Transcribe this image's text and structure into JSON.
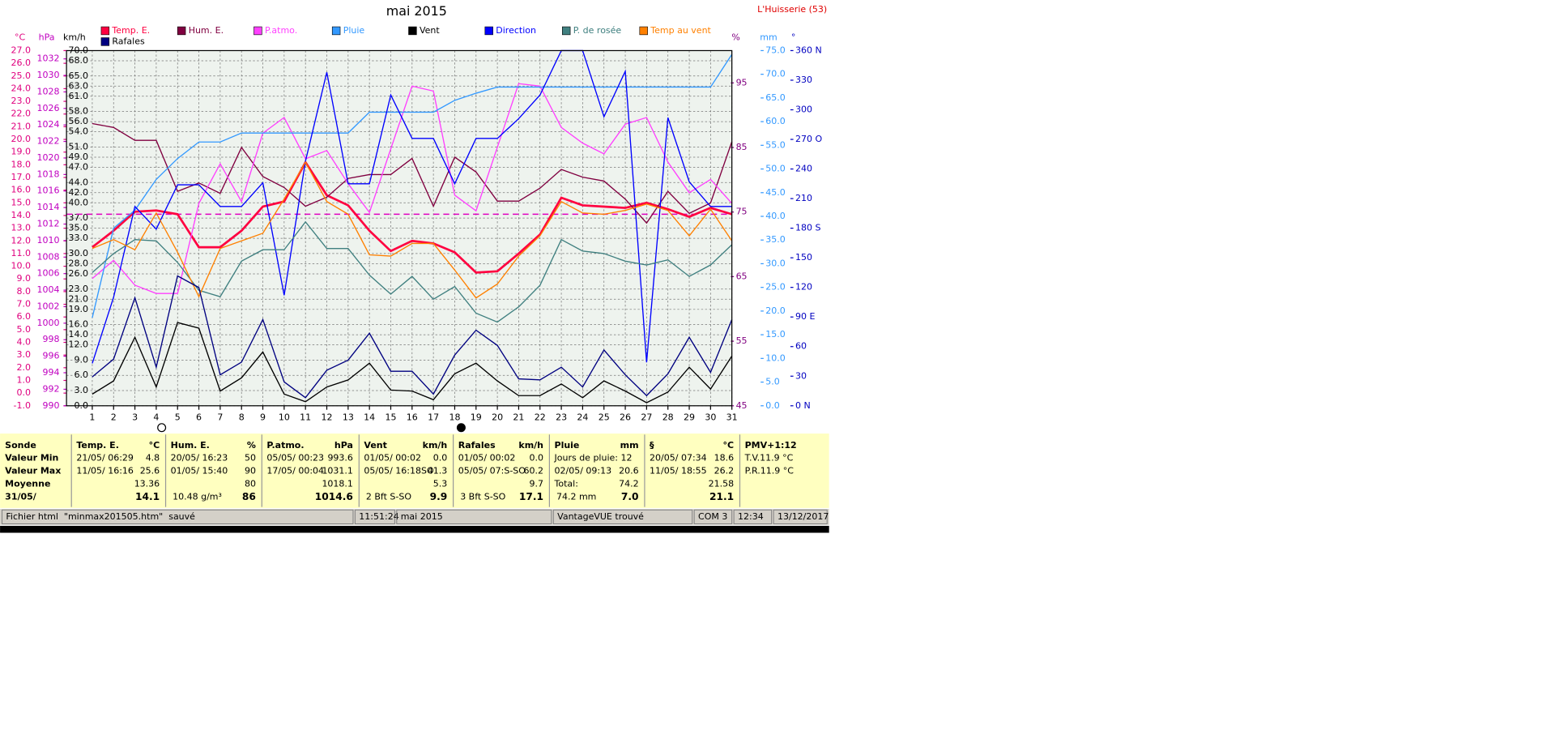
{
  "chart_data": {
    "type": "line",
    "title": "mai 2015",
    "station": "L'Huisserie (53)",
    "categories": [
      "1",
      "2",
      "3",
      "4",
      "5",
      "6",
      "7",
      "8",
      "9",
      "10",
      "11",
      "12",
      "13",
      "14",
      "15",
      "16",
      "17",
      "18",
      "19",
      "20",
      "21",
      "22",
      "23",
      "24",
      "25",
      "26",
      "27",
      "28",
      "29",
      "30",
      "31"
    ],
    "grid": true,
    "reference_line": 14.1,
    "axes": [
      {
        "unit": "°C",
        "ylim": [
          -1,
          27
        ],
        "yticks": [
          {
            "value": -1,
            "label": "-1.0"
          },
          {
            "value": 0,
            "label": "0.0"
          },
          {
            "value": 1,
            "label": "1.0"
          },
          {
            "value": 2,
            "label": "2.0"
          },
          {
            "value": 3,
            "label": "3.0"
          },
          {
            "value": 4,
            "label": "4.0"
          },
          {
            "value": 5,
            "label": "5.0"
          },
          {
            "value": 6,
            "label": "6.0"
          },
          {
            "value": 7,
            "label": "7.0"
          },
          {
            "value": 8,
            "label": "8.0"
          },
          {
            "value": 9,
            "label": "9.0"
          },
          {
            "value": 10,
            "label": "10.0"
          },
          {
            "value": 11,
            "label": "11.0"
          },
          {
            "value": 12,
            "label": "12.0"
          },
          {
            "value": 13,
            "label": "13.0"
          },
          {
            "value": 14,
            "label": "14.0"
          },
          {
            "value": 15,
            "label": "15.0"
          },
          {
            "value": 16,
            "label": "16.0"
          },
          {
            "value": 17,
            "label": "17.0"
          },
          {
            "value": 18,
            "label": "18.0"
          },
          {
            "value": 19,
            "label": "19.0"
          },
          {
            "value": 20,
            "label": "20.0"
          },
          {
            "value": 21,
            "label": "21.0"
          },
          {
            "value": 22,
            "label": "22.0"
          },
          {
            "value": 23,
            "label": "23.0"
          },
          {
            "value": 24,
            "label": "24.0"
          },
          {
            "value": 25,
            "label": "25.0"
          },
          {
            "value": 26,
            "label": "26.0"
          },
          {
            "value": 27,
            "label": "27.0"
          }
        ]
      },
      {
        "unit": "hPa",
        "ylim": [
          990,
          1033
        ],
        "yticks": [
          990,
          992,
          994,
          996,
          998,
          1000,
          1002,
          1004,
          1006,
          1008,
          1010,
          1012,
          1014,
          1016,
          1018,
          1020,
          1022,
          1024,
          1026,
          1028,
          1030,
          1032
        ]
      },
      {
        "unit": "km/h",
        "ylim": [
          0,
          70
        ],
        "yticks": [
          {
            "value": 0,
            "label": "0.0"
          },
          {
            "value": 3,
            "label": "3.0"
          },
          {
            "value": 6,
            "label": "6.0"
          },
          {
            "value": 9,
            "label": "9.0"
          },
          {
            "value": 12,
            "label": "12.0"
          },
          {
            "value": 14,
            "label": "14.0"
          },
          {
            "value": 16,
            "label": "16.0"
          },
          {
            "value": 19,
            "label": "19.0"
          },
          {
            "value": 21,
            "label": "21.0"
          },
          {
            "value": 23,
            "label": "23.0"
          },
          {
            "value": 26,
            "label": "26.0"
          },
          {
            "value": 28,
            "label": "28.0"
          },
          {
            "value": 30,
            "label": "30.0"
          },
          {
            "value": 33,
            "label": "33.0"
          },
          {
            "value": 35,
            "label": "35.0"
          },
          {
            "value": 37,
            "label": "37.0"
          },
          {
            "value": 40,
            "label": "40.0"
          },
          {
            "value": 42,
            "label": "42.0"
          },
          {
            "value": 44,
            "label": "44.0"
          },
          {
            "value": 47,
            "label": "47.0"
          },
          {
            "value": 49,
            "label": "49.0"
          },
          {
            "value": 51,
            "label": "51.0"
          },
          {
            "value": 54,
            "label": "54.0"
          },
          {
            "value": 56,
            "label": "56.0"
          },
          {
            "value": 58,
            "label": "58.0"
          },
          {
            "value": 61,
            "label": "61.0"
          },
          {
            "value": 63,
            "label": "63.0"
          },
          {
            "value": 65,
            "label": "65.0"
          },
          {
            "value": 68,
            "label": "68.0"
          },
          {
            "value": 70,
            "label": "70.0"
          }
        ]
      },
      {
        "unit": "%",
        "ylim": [
          45,
          100
        ],
        "yticks": [
          45,
          55,
          65,
          75,
          85,
          95
        ]
      },
      {
        "unit": "mm",
        "ylim": [
          0,
          75
        ],
        "yticks": [
          {
            "value": 0,
            "label": "0.0"
          },
          {
            "value": 5,
            "label": "5.0"
          },
          {
            "value": 10,
            "label": "10.0"
          },
          {
            "value": 15,
            "label": "15.0"
          },
          {
            "value": 20,
            "label": "20.0"
          },
          {
            "value": 25,
            "label": "25.0"
          },
          {
            "value": 30,
            "label": "30.0"
          },
          {
            "value": 35,
            "label": "35.0"
          },
          {
            "value": 40,
            "label": "40.0"
          },
          {
            "value": 45,
            "label": "45.0"
          },
          {
            "value": 50,
            "label": "50.0"
          },
          {
            "value": 55,
            "label": "55.0"
          },
          {
            "value": 60,
            "label": "60.0"
          },
          {
            "value": 65,
            "label": "65.0"
          },
          {
            "value": 70,
            "label": "70.0"
          },
          {
            "value": 75,
            "label": "75.0"
          }
        ]
      },
      {
        "unit": "°",
        "ylim": [
          0,
          360
        ],
        "yticks": [
          {
            "value": 0,
            "label": "0  N"
          },
          30,
          60,
          {
            "value": 90,
            "label": "90  E"
          },
          120,
          150,
          {
            "value": 180,
            "label": "180 S"
          },
          210,
          240,
          {
            "value": 270,
            "label": "270 O"
          },
          300,
          330,
          {
            "value": 360,
            "label": "360 N"
          }
        ]
      }
    ],
    "series": [
      {
        "name": "Temp. E.",
        "color": "#ff0040",
        "axis": 0,
        "values": [
          11.5,
          12.8,
          14.3,
          14.4,
          14.1,
          11.5,
          11.5,
          12.8,
          14.7,
          15.1,
          18.2,
          15.6,
          14.8,
          12.8,
          11.2,
          12.0,
          11.8,
          11.1,
          9.5,
          9.6,
          11.0,
          12.5,
          15.4,
          14.8,
          14.7,
          14.6,
          15.0,
          14.5,
          13.9,
          14.6,
          14.1
        ]
      },
      {
        "name": "Hum. E.",
        "color": "#800040",
        "axis": 3,
        "values": [
          88.7,
          88.1,
          86.1,
          86.1,
          78.2,
          79.5,
          77.9,
          85.0,
          80.5,
          78.8,
          75.9,
          77.3,
          80.2,
          80.8,
          80.8,
          83.3,
          75.9,
          83.5,
          81.2,
          76.7,
          76.7,
          78.7,
          81.6,
          80.4,
          79.8,
          77.0,
          73.3,
          78.2,
          74.8,
          76.4,
          85.9
        ]
      },
      {
        "name": "P.atmo.",
        "color": "#ff40ff",
        "axis": 1,
        "values": [
          1005.4,
          1007.6,
          1004.6,
          1003.6,
          1003.6,
          1014.5,
          1019.3,
          1014.7,
          1023.0,
          1024.9,
          1019.9,
          1020.9,
          1016.9,
          1013.4,
          1021.1,
          1028.7,
          1028.1,
          1015.5,
          1013.6,
          1021.3,
          1029.0,
          1028.7,
          1023.7,
          1021.8,
          1020.5,
          1024.1,
          1024.9,
          1019.5,
          1015.8,
          1017.4,
          1014.5
        ]
      },
      {
        "name": "Pluie",
        "color": "#3399ff",
        "axis": 4,
        "values": [
          18.6,
          37.5,
          41.3,
          47.8,
          52.2,
          55.7,
          55.7,
          57.6,
          57.6,
          57.6,
          57.6,
          57.6,
          57.6,
          62.0,
          62.0,
          62.0,
          62.0,
          64.5,
          66.0,
          67.3,
          67.3,
          67.3,
          67.3,
          67.3,
          67.3,
          67.3,
          67.3,
          67.3,
          67.3,
          67.3,
          74.2
        ]
      },
      {
        "name": "Vent",
        "color": "#000000",
        "axis": 2,
        "values": [
          2.3,
          4.9,
          13.5,
          3.7,
          16.4,
          15.3,
          2.9,
          5.5,
          10.6,
          2.3,
          0.8,
          3.7,
          5.1,
          8.4,
          3.1,
          2.9,
          1.2,
          6.3,
          8.4,
          4.9,
          2.0,
          2.0,
          4.3,
          1.6,
          4.9,
          2.9,
          0.6,
          2.7,
          7.6,
          3.3,
          9.8
        ]
      },
      {
        "name": "Direction",
        "color": "#0000ff",
        "axis": 5,
        "values": [
          43,
          110,
          202,
          179,
          224,
          224,
          202,
          202,
          226,
          112,
          248,
          338,
          225,
          225,
          315,
          271,
          271,
          225,
          271,
          271,
          291,
          315,
          360,
          360,
          293,
          339,
          44,
          292,
          227,
          202,
          202
        ]
      },
      {
        "name": "P. de rosée",
        "color": "#408080",
        "axis": 0,
        "values": [
          9.5,
          11.0,
          12.1,
          12.0,
          10.3,
          8.1,
          7.6,
          10.4,
          11.3,
          11.3,
          13.5,
          11.4,
          11.4,
          9.3,
          7.8,
          9.2,
          7.4,
          8.4,
          6.3,
          5.6,
          6.8,
          8.5,
          12.1,
          11.2,
          11.0,
          10.4,
          10.1,
          10.5,
          9.2,
          10.1,
          11.7
        ]
      },
      {
        "name": "Temp au vent",
        "color": "#ff8000",
        "axis": 0,
        "values": [
          11.4,
          12.1,
          11.3,
          14.2,
          11.1,
          7.6,
          11.4,
          12.0,
          12.6,
          15.3,
          18.2,
          15.1,
          14.1,
          10.9,
          10.8,
          11.8,
          11.8,
          9.7,
          7.5,
          8.6,
          10.8,
          12.4,
          15.1,
          14.2,
          14.1,
          14.4,
          14.9,
          14.4,
          12.4,
          14.5,
          12.0
        ]
      },
      {
        "name": "Rafales",
        "color": "#000080",
        "axis": 2,
        "values": [
          5.7,
          9.2,
          21.3,
          7.6,
          25.6,
          23.3,
          6.1,
          8.6,
          17.0,
          4.7,
          1.6,
          7.0,
          9.0,
          14.3,
          6.8,
          6.8,
          2.3,
          10.0,
          14.9,
          11.9,
          5.3,
          5.1,
          7.6,
          3.7,
          11.0,
          6.1,
          2.0,
          6.3,
          13.5,
          6.6,
          17.0
        ]
      }
    ]
  },
  "table": {
    "row_labels": [
      "Sonde",
      "Valeur Min",
      "Valeur Max",
      "Moyenne",
      "31/05/"
    ],
    "columns": [
      {
        "header": "Temp. E.",
        "unit": "°C",
        "cells": [
          {
            "left": "21/05/ 06:29",
            "right": "4.8"
          },
          {
            "left": "11/05/ 16:16",
            "right": "25.6"
          },
          {
            "right": "13.36"
          },
          {
            "right": "14.1"
          }
        ]
      },
      {
        "header": "Hum. E.",
        "unit": "%",
        "cells": [
          {
            "left": "20/05/ 16:23",
            "right": "50"
          },
          {
            "left": "01/05/ 15:40",
            "right": "90"
          },
          {
            "right": "80"
          },
          {
            "left": "10.48 g/m³",
            "right": "86"
          }
        ]
      },
      {
        "header": "P.atmo.",
        "unit": "hPa",
        "cells": [
          {
            "left": "05/05/ 00:23",
            "right": "993.6"
          },
          {
            "left": "17/05/ 00:04",
            "right": "1031.1"
          },
          {
            "right": "1018.1"
          },
          {
            "right": "1014.6"
          }
        ]
      },
      {
        "header": "Vent",
        "unit": "km/h",
        "cells": [
          {
            "left": "01/05/ 00:02",
            "right": "0.0"
          },
          {
            "left": "05/05/ 16:18SO",
            "right": "41.3"
          },
          {
            "right": "5.3"
          },
          {
            "left": "2 Bft S-SO",
            "right": "9.9"
          }
        ]
      },
      {
        "header": "Rafales",
        "unit": "km/h",
        "cells": [
          {
            "left": "01/05/ 00:02",
            "right": "0.0"
          },
          {
            "left": "05/05/ 07:S-SO",
            "right": "60.2"
          },
          {
            "right": "9.7"
          },
          {
            "left": "3 Bft S-SO",
            "right": "17.1"
          }
        ]
      },
      {
        "header": "Pluie",
        "unit": "mm",
        "cells": [
          {
            "left": "Jours de pluie: 12"
          },
          {
            "left": "02/05/ 09:13",
            "right": "20.6"
          },
          {
            "left": "Total:",
            "right": "74.2"
          },
          {
            "left": "74.2 mm",
            "right": "7.0"
          }
        ]
      },
      {
        "header": "§",
        "unit": "°C",
        "cells": [
          {
            "left": "20/05/ 07:34",
            "right": "18.6"
          },
          {
            "left": "11/05/ 18:55",
            "right": "26.2"
          },
          {
            "right": "21.58"
          },
          {
            "right": "21.1"
          }
        ]
      },
      {
        "header": "PMV+1:12",
        "cells": [
          {
            "left": "T.V.11.9 °C"
          },
          {
            "left": "P.R.11.9 °C"
          }
        ]
      }
    ]
  },
  "status_bar": [
    "Fichier html  \"minmax201505.htm\"  sauvé",
    "11:51:24",
    "mai 2015",
    "VantageVUE trouvé",
    "COM 3",
    "12:34",
    "13/12/2017"
  ]
}
